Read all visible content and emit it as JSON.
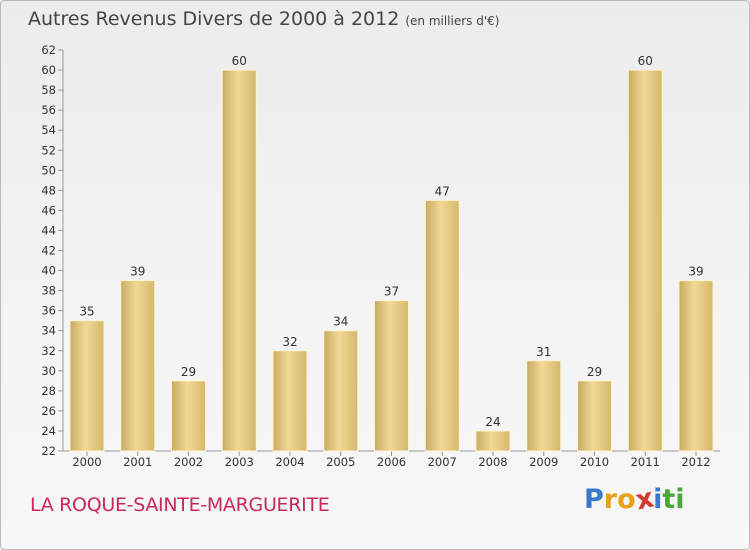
{
  "chart_data": {
    "type": "bar",
    "title": "Autres Revenus Divers de 2000 à 2012",
    "unit": "(en milliers d'€)",
    "categories": [
      "2000",
      "2001",
      "2002",
      "2003",
      "2004",
      "2005",
      "2006",
      "2007",
      "2008",
      "2009",
      "2010",
      "2011",
      "2012"
    ],
    "values": [
      35,
      39,
      29,
      60,
      32,
      34,
      37,
      47,
      24,
      31,
      29,
      60,
      39
    ],
    "ylim": [
      22,
      62
    ],
    "yticks": [
      22,
      24,
      26,
      28,
      30,
      32,
      34,
      36,
      38,
      40,
      42,
      44,
      46,
      48,
      50,
      52,
      54,
      56,
      58,
      60,
      62
    ],
    "grid": false,
    "bar_color": "#e2c57c"
  },
  "footer": {
    "commune": "LA ROQUE-SAINTE-MARGUERITE",
    "logo_letters": [
      "P",
      "r",
      "o",
      "x",
      "i",
      "t",
      "i"
    ],
    "logo_colors": [
      "#3a79c8",
      "#e8a21a",
      "#e8a21a",
      "#d43a2a",
      "#3a79c8",
      "#4aa83a",
      "#4aa83a"
    ]
  }
}
